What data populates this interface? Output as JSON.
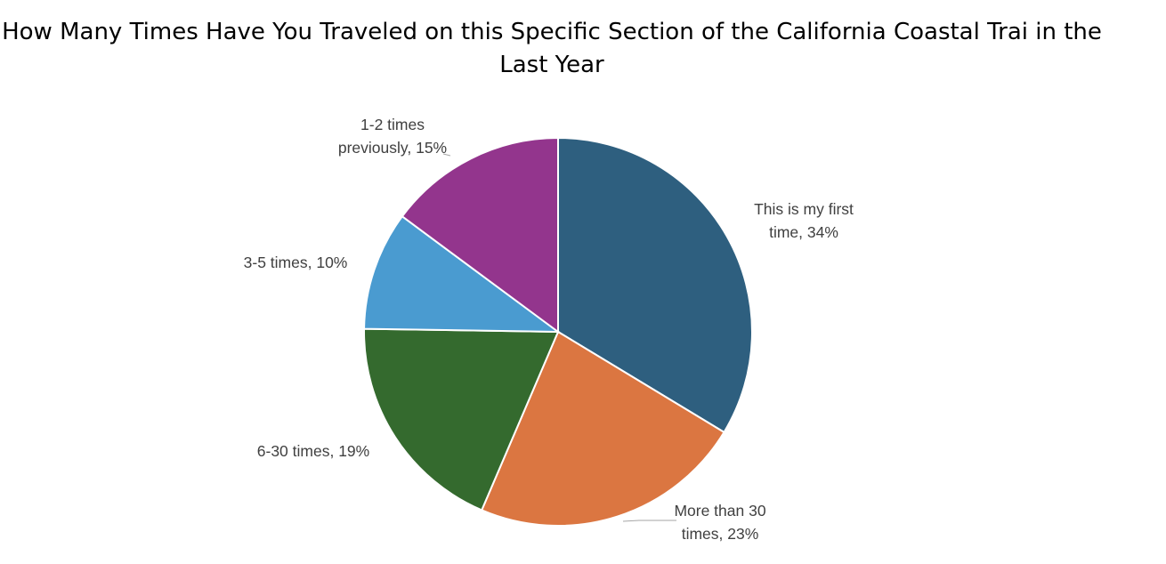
{
  "chart_data": {
    "type": "pie",
    "title": "How Many Times Have You Traveled on this Specific Section of the California Coastal Trai in the Last Year",
    "start_angle_deg": 0,
    "direction": "clockwise",
    "slices": [
      {
        "label": "This is my first time",
        "value": 34,
        "data_label_lines": [
          "This is my first",
          "time, 34%"
        ],
        "color": "#2e5f7f"
      },
      {
        "label": "More than 30 times",
        "value": 23,
        "data_label_lines": [
          "More than 30",
          "times, 23%"
        ],
        "color": "#db7641"
      },
      {
        "label": "6-30 times",
        "value": 19,
        "data_label_lines": [
          "6-30 times, 19%"
        ],
        "color": "#346a2e"
      },
      {
        "label": "3-5 times",
        "value": 10,
        "data_label_lines": [
          "3-5 times, 10%"
        ],
        "color": "#4a9bd0"
      },
      {
        "label": "1-2 times previously",
        "value": 15,
        "data_label_lines": [
          "1-2 times",
          "previously, 15%"
        ],
        "color": "#93358d"
      }
    ]
  }
}
